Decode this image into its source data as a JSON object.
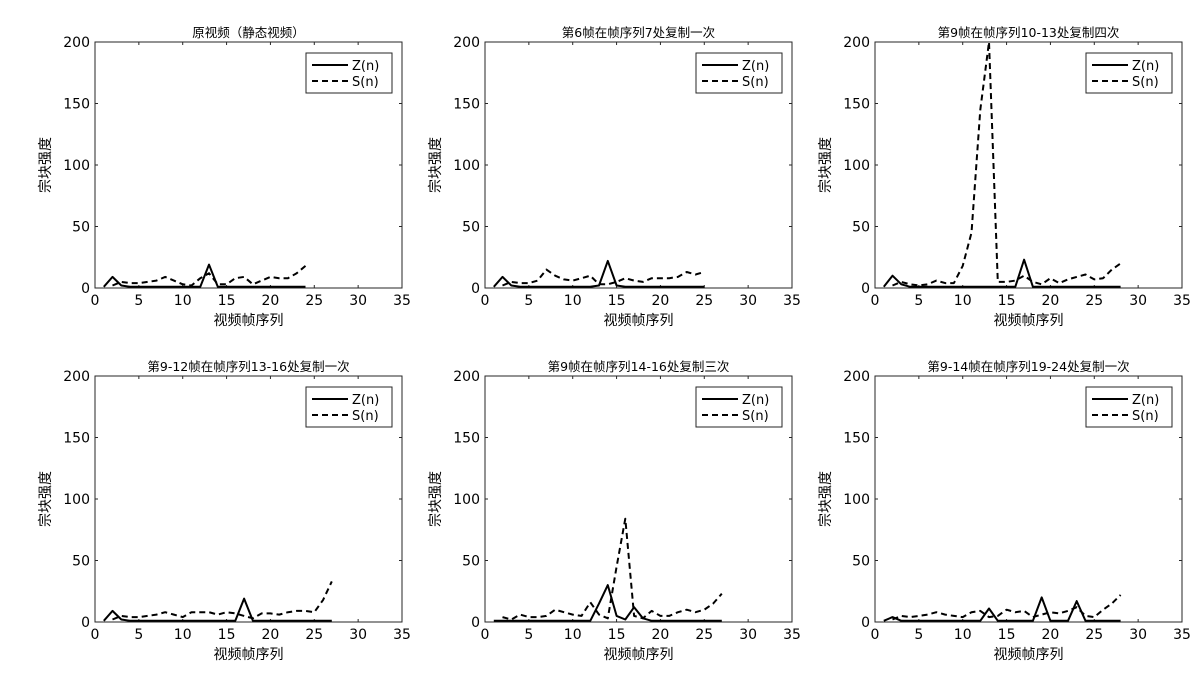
{
  "figure": {
    "chart_data": [
      {
        "type": "line",
        "title": "原视频（静态视频）",
        "xlabel": "视频帧序列",
        "ylabel": "宗块强度",
        "xlim": [
          0,
          35
        ],
        "ylim": [
          0,
          200
        ],
        "xticks": [
          0,
          5,
          10,
          15,
          20,
          25,
          30,
          35
        ],
        "yticks": [
          0,
          50,
          100,
          150,
          200
        ],
        "grid": false,
        "legend_placement": "top-right",
        "series": [
          {
            "name": "Z(n)",
            "style": "solid",
            "color": "#000000",
            "x": [
              1,
              2,
              3,
              4,
              5,
              6,
              7,
              8,
              9,
              10,
              11,
              12,
              13,
              14,
              15,
              16,
              17,
              18,
              19,
              20,
              21,
              22,
              23,
              24
            ],
            "y": [
              1,
              9,
              2,
              1,
              1,
              1,
              1,
              1,
              1,
              1,
              1,
              1,
              19,
              1,
              1,
              1,
              1,
              1,
              1,
              1,
              1,
              1,
              1,
              1
            ]
          },
          {
            "name": "S(n)",
            "style": "dashed",
            "color": "#000000",
            "x": [
              2,
              3,
              4,
              5,
              6,
              7,
              8,
              9,
              10,
              11,
              12,
              13,
              14,
              15,
              16,
              17,
              18,
              19,
              20,
              21,
              22,
              23,
              24
            ],
            "y": [
              2,
              5,
              4,
              4,
              5,
              6,
              9,
              6,
              3,
              2,
              8,
              12,
              3,
              3,
              8,
              9,
              3,
              6,
              9,
              8,
              8,
              12,
              18
            ]
          }
        ]
      },
      {
        "type": "line",
        "title": "第6帧在帧序列7处复制一次",
        "xlabel": "视频帧序列",
        "ylabel": "宗块强度",
        "xlim": [
          0,
          35
        ],
        "ylim": [
          0,
          200
        ],
        "xticks": [
          0,
          5,
          10,
          15,
          20,
          25,
          30,
          35
        ],
        "yticks": [
          0,
          50,
          100,
          150,
          200
        ],
        "grid": false,
        "legend_placement": "top-right",
        "series": [
          {
            "name": "Z(n)",
            "style": "solid",
            "color": "#000000",
            "x": [
              1,
              2,
              3,
              4,
              5,
              6,
              7,
              8,
              9,
              10,
              11,
              12,
              13,
              14,
              15,
              16,
              17,
              18,
              19,
              20,
              21,
              22,
              23,
              24,
              25
            ],
            "y": [
              1,
              9,
              2,
              1,
              1,
              1,
              1,
              1,
              1,
              1,
              1,
              1,
              2,
              22,
              2,
              1,
              1,
              1,
              1,
              1,
              1,
              1,
              1,
              1,
              1
            ]
          },
          {
            "name": "S(n)",
            "style": "dashed",
            "color": "#000000",
            "x": [
              2,
              3,
              4,
              5,
              6,
              7,
              8,
              9,
              10,
              11,
              12,
              13,
              14,
              15,
              16,
              17,
              18,
              19,
              20,
              21,
              22,
              23,
              24,
              25
            ],
            "y": [
              2,
              5,
              4,
              4,
              6,
              15,
              10,
              7,
              6,
              8,
              10,
              3,
              3,
              5,
              8,
              6,
              5,
              8,
              8,
              8,
              9,
              13,
              11,
              13
            ]
          }
        ]
      },
      {
        "type": "line",
        "title": "第9帧在帧序列10-13处复制四次",
        "xlabel": "视频帧序列",
        "ylabel": "宗块强度",
        "xlim": [
          0,
          35
        ],
        "ylim": [
          0,
          200
        ],
        "xticks": [
          0,
          5,
          10,
          15,
          20,
          25,
          30,
          35
        ],
        "yticks": [
          0,
          50,
          100,
          150,
          200
        ],
        "grid": false,
        "legend_placement": "top-right",
        "series": [
          {
            "name": "Z(n)",
            "style": "solid",
            "color": "#000000",
            "x": [
              1,
              2,
              3,
              4,
              5,
              6,
              7,
              8,
              9,
              10,
              11,
              12,
              13,
              14,
              15,
              16,
              17,
              18,
              19,
              20,
              21,
              22,
              23,
              24,
              25,
              26,
              27,
              28
            ],
            "y": [
              1,
              10,
              3,
              1,
              1,
              1,
              1,
              1,
              1,
              1,
              1,
              1,
              1,
              1,
              1,
              1,
              23,
              1,
              1,
              1,
              1,
              1,
              1,
              1,
              1,
              1,
              1,
              1
            ]
          },
          {
            "name": "S(n)",
            "style": "dashed",
            "color": "#000000",
            "x": [
              2,
              3,
              4,
              5,
              6,
              7,
              8,
              9,
              10,
              11,
              12,
              13,
              14,
              15,
              16,
              17,
              18,
              19,
              20,
              21,
              22,
              23,
              24,
              25,
              26,
              27,
              28
            ],
            "y": [
              2,
              5,
              3,
              2,
              3,
              6,
              4,
              4,
              18,
              45,
              145,
              200,
              5,
              5,
              6,
              10,
              5,
              3,
              8,
              4,
              7,
              9,
              11,
              7,
              8,
              15,
              20
            ]
          }
        ]
      },
      {
        "type": "line",
        "title": "第9-12帧在帧序列13-16处复制一次",
        "xlabel": "视频帧序列",
        "ylabel": "宗块强度",
        "xlim": [
          0,
          35
        ],
        "ylim": [
          0,
          200
        ],
        "xticks": [
          0,
          5,
          10,
          15,
          20,
          25,
          30,
          35
        ],
        "yticks": [
          0,
          50,
          100,
          150,
          200
        ],
        "grid": false,
        "legend_placement": "top-right",
        "series": [
          {
            "name": "Z(n)",
            "style": "solid",
            "color": "#000000",
            "x": [
              1,
              2,
              3,
              4,
              5,
              6,
              7,
              8,
              9,
              10,
              11,
              12,
              13,
              14,
              15,
              16,
              17,
              18,
              19,
              20,
              21,
              22,
              23,
              24,
              25,
              26,
              27
            ],
            "y": [
              1,
              9,
              2,
              1,
              1,
              1,
              1,
              1,
              1,
              1,
              1,
              1,
              1,
              1,
              1,
              1,
              19,
              1,
              1,
              1,
              1,
              1,
              1,
              1,
              1,
              1,
              1
            ]
          },
          {
            "name": "S(n)",
            "style": "dashed",
            "color": "#000000",
            "x": [
              2,
              3,
              4,
              5,
              6,
              7,
              8,
              9,
              10,
              11,
              12,
              13,
              14,
              15,
              16,
              17,
              18,
              19,
              20,
              21,
              22,
              23,
              24,
              25,
              26,
              27
            ],
            "y": [
              2,
              5,
              4,
              4,
              5,
              6,
              8,
              6,
              4,
              8,
              8,
              8,
              6,
              8,
              7,
              5,
              3,
              7,
              7,
              6,
              8,
              9,
              9,
              8,
              18,
              33
            ]
          }
        ]
      },
      {
        "type": "line",
        "title": "第9帧在帧序列14-16处复制三次",
        "xlabel": "视频帧序列",
        "ylabel": "宗块强度",
        "xlim": [
          0,
          35
        ],
        "ylim": [
          0,
          200
        ],
        "xticks": [
          0,
          5,
          10,
          15,
          20,
          25,
          30,
          35
        ],
        "yticks": [
          0,
          50,
          100,
          150,
          200
        ],
        "grid": false,
        "legend_placement": "top-right",
        "series": [
          {
            "name": "Z(n)",
            "style": "solid",
            "color": "#000000",
            "x": [
              1,
              2,
              3,
              4,
              5,
              6,
              7,
              8,
              9,
              10,
              11,
              12,
              13,
              14,
              15,
              16,
              17,
              18,
              19,
              20,
              21,
              22,
              23,
              24,
              25,
              26,
              27
            ],
            "y": [
              1,
              1,
              1,
              1,
              1,
              1,
              1,
              1,
              1,
              1,
              1,
              1,
              15,
              30,
              5,
              2,
              12,
              3,
              1,
              1,
              1,
              1,
              1,
              1,
              1,
              1,
              1
            ]
          },
          {
            "name": "S(n)",
            "style": "dashed",
            "color": "#000000",
            "x": [
              2,
              3,
              4,
              5,
              6,
              7,
              8,
              9,
              10,
              11,
              12,
              13,
              14,
              15,
              16,
              17,
              18,
              19,
              20,
              21,
              22,
              23,
              24,
              25,
              26,
              27
            ],
            "y": [
              4,
              2,
              6,
              4,
              4,
              5,
              10,
              8,
              6,
              5,
              16,
              6,
              3,
              45,
              84,
              5,
              3,
              9,
              5,
              5,
              8,
              10,
              8,
              10,
              15,
              23
            ]
          }
        ]
      },
      {
        "type": "line",
        "title": "第9-14帧在帧序列19-24处复制一次",
        "xlabel": "视频帧序列",
        "ylabel": "宗块强度",
        "xlim": [
          0,
          35
        ],
        "ylim": [
          0,
          200
        ],
        "xticks": [
          0,
          5,
          10,
          15,
          20,
          25,
          30,
          35
        ],
        "yticks": [
          0,
          50,
          100,
          150,
          200
        ],
        "grid": false,
        "legend_placement": "top-right",
        "series": [
          {
            "name": "Z(n)",
            "style": "solid",
            "color": "#000000",
            "x": [
              1,
              2,
              3,
              4,
              5,
              6,
              7,
              8,
              9,
              10,
              11,
              12,
              13,
              14,
              15,
              16,
              17,
              18,
              19,
              20,
              21,
              22,
              23,
              24,
              25,
              26,
              27,
              28
            ],
            "y": [
              1,
              4,
              1,
              1,
              1,
              1,
              1,
              1,
              1,
              1,
              1,
              1,
              11,
              1,
              1,
              1,
              1,
              1,
              20,
              1,
              1,
              1,
              17,
              1,
              1,
              1,
              1,
              1
            ]
          },
          {
            "name": "S(n)",
            "style": "dashed",
            "color": "#000000",
            "x": [
              2,
              3,
              4,
              5,
              6,
              7,
              8,
              9,
              10,
              11,
              12,
              13,
              14,
              15,
              16,
              17,
              18,
              19,
              20,
              21,
              22,
              23,
              24,
              25,
              26,
              27,
              28
            ],
            "y": [
              2,
              5,
              4,
              5,
              6,
              8,
              6,
              5,
              4,
              8,
              9,
              4,
              5,
              10,
              8,
              9,
              4,
              6,
              8,
              7,
              9,
              12,
              5,
              4,
              10,
              15,
              22
            ]
          }
        ]
      }
    ]
  }
}
